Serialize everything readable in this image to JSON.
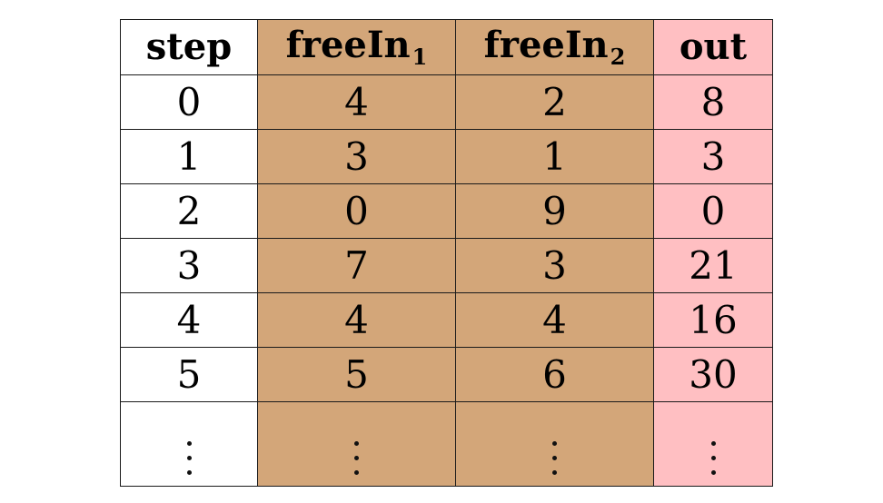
{
  "colors": {
    "step_column": "#ffffff",
    "free_inputs": "#d3a679",
    "output_column": "#ffbfc2",
    "border": "#1a1a1a"
  },
  "table": {
    "headers": [
      {
        "base": "step",
        "sub": ""
      },
      {
        "base": "freeIn",
        "sub": "1"
      },
      {
        "base": "freeIn",
        "sub": "2"
      },
      {
        "base": "out",
        "sub": ""
      }
    ],
    "rows": [
      [
        "0",
        "4",
        "2",
        "8"
      ],
      [
        "1",
        "3",
        "1",
        "3"
      ],
      [
        "2",
        "0",
        "9",
        "0"
      ],
      [
        "3",
        "7",
        "3",
        "21"
      ],
      [
        "4",
        "4",
        "4",
        "16"
      ],
      [
        "5",
        "5",
        "6",
        "30"
      ]
    ],
    "continuation": "vertical-ellipsis"
  }
}
